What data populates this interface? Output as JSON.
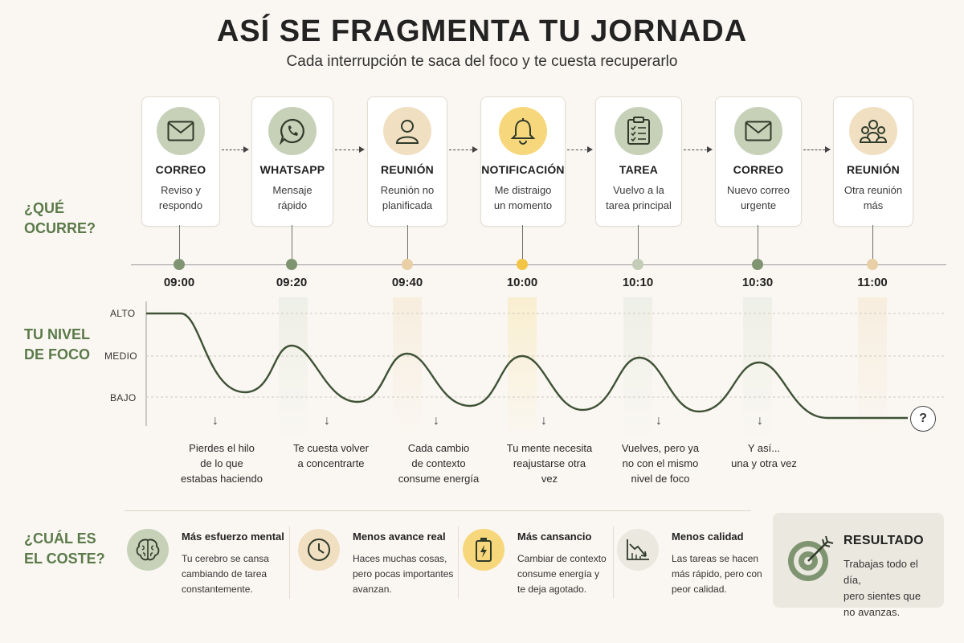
{
  "header": {
    "title": "ASÍ SE FRAGMENTA TU JORNADA",
    "subtitle": "Cada interrupción te saca del foco y te cuesta recuperarlo"
  },
  "side_labels": {
    "que_ocurre": [
      "¿QUÉ",
      "OCURRE?"
    ],
    "nivel_foco": [
      "TU NIVEL",
      "DE FOCO"
    ],
    "coste": [
      "¿CUÁL ES",
      "EL COSTE?"
    ]
  },
  "events": [
    {
      "title": "CORREO",
      "desc": [
        "Reviso y",
        "respondo"
      ],
      "time": "09:00",
      "icon": "envelope-icon",
      "circle": "#c6d1b8",
      "dot": "#7f9470"
    },
    {
      "title": "WHATSAPP",
      "desc": [
        "Mensaje",
        "rápido"
      ],
      "time": "09:20",
      "icon": "whatsapp-icon",
      "circle": "#c6d1b8",
      "dot": "#7f9470"
    },
    {
      "title": "REUNIÓN",
      "desc": [
        "Reunión no",
        "planificada"
      ],
      "time": "09:40",
      "icon": "person-icon",
      "circle": "#f1dfc2",
      "dot": "#e8cfa6"
    },
    {
      "title": "NOTIFICACIÓN",
      "desc": [
        "Me distraigo",
        "un momento"
      ],
      "time": "10:00",
      "icon": "bell-icon",
      "circle": "#f7d77c",
      "dot": "#f2c544"
    },
    {
      "title": "TAREA",
      "desc": [
        "Vuelvo a la",
        "tarea principal"
      ],
      "time": "10:10",
      "icon": "clipboard-icon",
      "circle": "#c6d1b8",
      "dot": "#c3ccb7"
    },
    {
      "title": "CORREO",
      "desc": [
        "Nuevo correo",
        "urgente"
      ],
      "time": "10:30",
      "icon": "envelope-icon",
      "circle": "#c6d1b8",
      "dot": "#7f9470"
    },
    {
      "title": "REUNIÓN",
      "desc": [
        "Otra reunión",
        "más"
      ],
      "time": "11:00",
      "icon": "group-icon",
      "circle": "#f1dfc2",
      "dot": "#e8cfa6"
    }
  ],
  "focus_levels": [
    "ALTO",
    "MEDIO",
    "BAJO"
  ],
  "notes": [
    [
      "Pierdes el hilo",
      "de lo que",
      "estabas haciendo"
    ],
    [
      "Te cuesta volver",
      "a concentrarte"
    ],
    [
      "Cada cambio",
      "de contexto",
      "consume energía"
    ],
    [
      "Tu mente necesita",
      "reajustarse otra",
      "vez"
    ],
    [
      "Vuelves, pero ya",
      "no con el mismo",
      "nivel de foco"
    ],
    [
      "Y así...",
      "una y otra vez"
    ]
  ],
  "end_mark": "?",
  "costs": [
    {
      "title": "Más esfuerzo mental",
      "desc": [
        "Tu cerebro se cansa",
        "cambiando de tarea",
        "constantemente."
      ],
      "icon": "brain-icon",
      "circle": "#c6d1b8"
    },
    {
      "title": "Menos avance real",
      "desc": [
        "Haces muchas cosas,",
        "pero pocas importantes",
        "avanzan."
      ],
      "icon": "clock-icon",
      "circle": "#f1dfc2"
    },
    {
      "title": "Más cansancio",
      "desc": [
        "Cambiar de contexto",
        "consume energía y",
        "te deja agotado."
      ],
      "icon": "battery-icon",
      "circle": "#f7d77c"
    },
    {
      "title": "Menos calidad",
      "desc": [
        "Las tareas se hacen",
        "más rápido, pero con",
        "peor calidad."
      ],
      "icon": "declining-chart-icon",
      "circle": "#ebe8e0"
    }
  ],
  "result": {
    "title": "RESULTADO",
    "desc": [
      "Trabajas todo el día,",
      "pero sientes que",
      "no avanzas."
    ],
    "icon": "target-icon"
  },
  "colors": {
    "accent_green": "#5b7a4a",
    "curve": "#3f5236",
    "background": "#faf7f2"
  }
}
